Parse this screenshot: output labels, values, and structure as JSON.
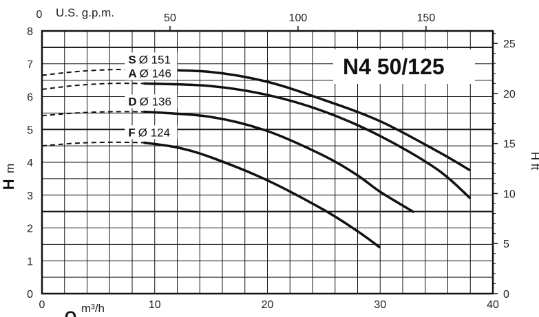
{
  "chart_data": {
    "type": "line",
    "title": "N4 50/125",
    "x_primary": {
      "label": "Q",
      "unit": "m³/h",
      "range": [
        0,
        40
      ],
      "ticks": [
        0,
        10,
        20,
        30,
        40
      ]
    },
    "x_secondary": {
      "label": "U.S. g.p.m.",
      "zero_label": "0",
      "ticks": [
        50,
        100,
        150
      ],
      "per_primary_unit": 4.4029
    },
    "y_primary": {
      "label": "H",
      "unit": "m",
      "range": [
        0,
        8
      ],
      "ticks": [
        0,
        1,
        2,
        3,
        4,
        5,
        6,
        7,
        8
      ]
    },
    "y_secondary": {
      "label": "H ft",
      "ticks": [
        0,
        5,
        10,
        15,
        20,
        25
      ],
      "per_primary_unit": 3.2808
    },
    "grid": true,
    "series": [
      {
        "name": "S",
        "diameter": "Ø 151",
        "dashed": [
          [
            0,
            6.65
          ],
          [
            3,
            6.76
          ],
          [
            6,
            6.82
          ],
          [
            9,
            6.82
          ]
        ],
        "solid": [
          [
            9,
            6.82
          ],
          [
            15,
            6.75
          ],
          [
            20,
            6.45
          ],
          [
            25,
            5.9
          ],
          [
            30,
            5.25
          ],
          [
            35,
            4.35
          ],
          [
            38,
            3.75
          ]
        ]
      },
      {
        "name": "A",
        "diameter": "Ø 146",
        "dashed": [
          [
            0,
            6.22
          ],
          [
            3,
            6.34
          ],
          [
            6,
            6.4
          ],
          [
            9,
            6.4
          ]
        ],
        "solid": [
          [
            9,
            6.4
          ],
          [
            15,
            6.32
          ],
          [
            20,
            6.05
          ],
          [
            25,
            5.55
          ],
          [
            30,
            4.8
          ],
          [
            35,
            3.8
          ],
          [
            38,
            2.9
          ]
        ]
      },
      {
        "name": "D",
        "diameter": "Ø 136",
        "dashed": [
          [
            0,
            5.42
          ],
          [
            3,
            5.5
          ],
          [
            6,
            5.54
          ],
          [
            9,
            5.54
          ]
        ],
        "solid": [
          [
            9,
            5.54
          ],
          [
            15,
            5.38
          ],
          [
            20,
            4.95
          ],
          [
            25,
            4.2
          ],
          [
            28,
            3.6
          ],
          [
            30,
            3.1
          ],
          [
            33,
            2.48
          ]
        ]
      },
      {
        "name": "F",
        "diameter": "Ø 124",
        "dashed": [
          [
            0,
            4.5
          ],
          [
            3,
            4.58
          ],
          [
            6,
            4.61
          ],
          [
            9,
            4.6
          ]
        ],
        "solid": [
          [
            9,
            4.6
          ],
          [
            12,
            4.45
          ],
          [
            15,
            4.15
          ],
          [
            20,
            3.45
          ],
          [
            25,
            2.55
          ],
          [
            28,
            1.9
          ],
          [
            30,
            1.4
          ]
        ]
      }
    ]
  }
}
